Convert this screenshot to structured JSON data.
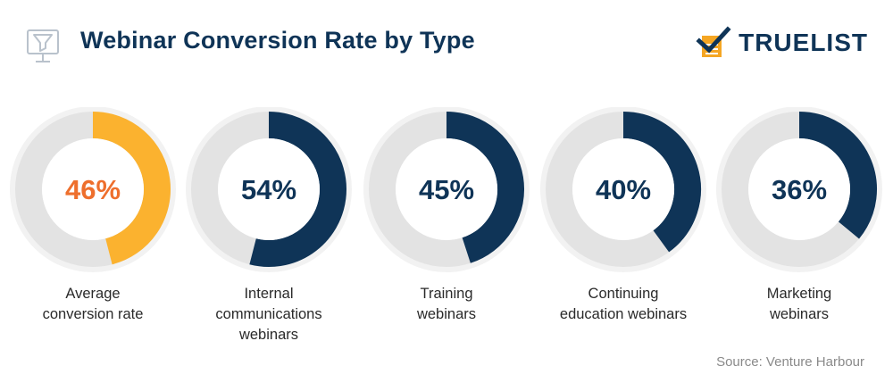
{
  "header": {
    "title": "Webinar Conversion Rate by Type",
    "icon": "funnel-monitor-icon"
  },
  "brand": {
    "name": "TRUELIST",
    "icon": "checkmark-clipboard-icon",
    "colors": {
      "check": "#0f3457",
      "paper": "#f5a623"
    }
  },
  "source": "Source: Venture Harbour",
  "colors": {
    "track": "#e3e3e3",
    "outer_ring": "#f2f2f2",
    "highlight": "#fbb22f",
    "highlight_text": "#ee6f2d",
    "series": "#0f3457",
    "label_text": "#0f3457"
  },
  "chart_data": {
    "type": "pie",
    "subtype": "donut",
    "title": "Webinar Conversion Rate by Type",
    "categories": [
      "Average conversion rate",
      "Internal communications webinars",
      "Training webinars",
      "Continuing education webinars",
      "Marketing webinars"
    ],
    "values": [
      46,
      54,
      45,
      40,
      36
    ],
    "value_labels": [
      "46%",
      "54%",
      "45%",
      "40%",
      "36%"
    ],
    "caption_lines": [
      [
        "Average",
        "conversion rate"
      ],
      [
        "Internal",
        "communications",
        "webinars"
      ],
      [
        "Training",
        "webinars"
      ],
      [
        "Continuing",
        "education webinars"
      ],
      [
        "Marketing",
        "webinars"
      ]
    ],
    "highlight_index": 0,
    "unit": "%",
    "max": 100
  }
}
